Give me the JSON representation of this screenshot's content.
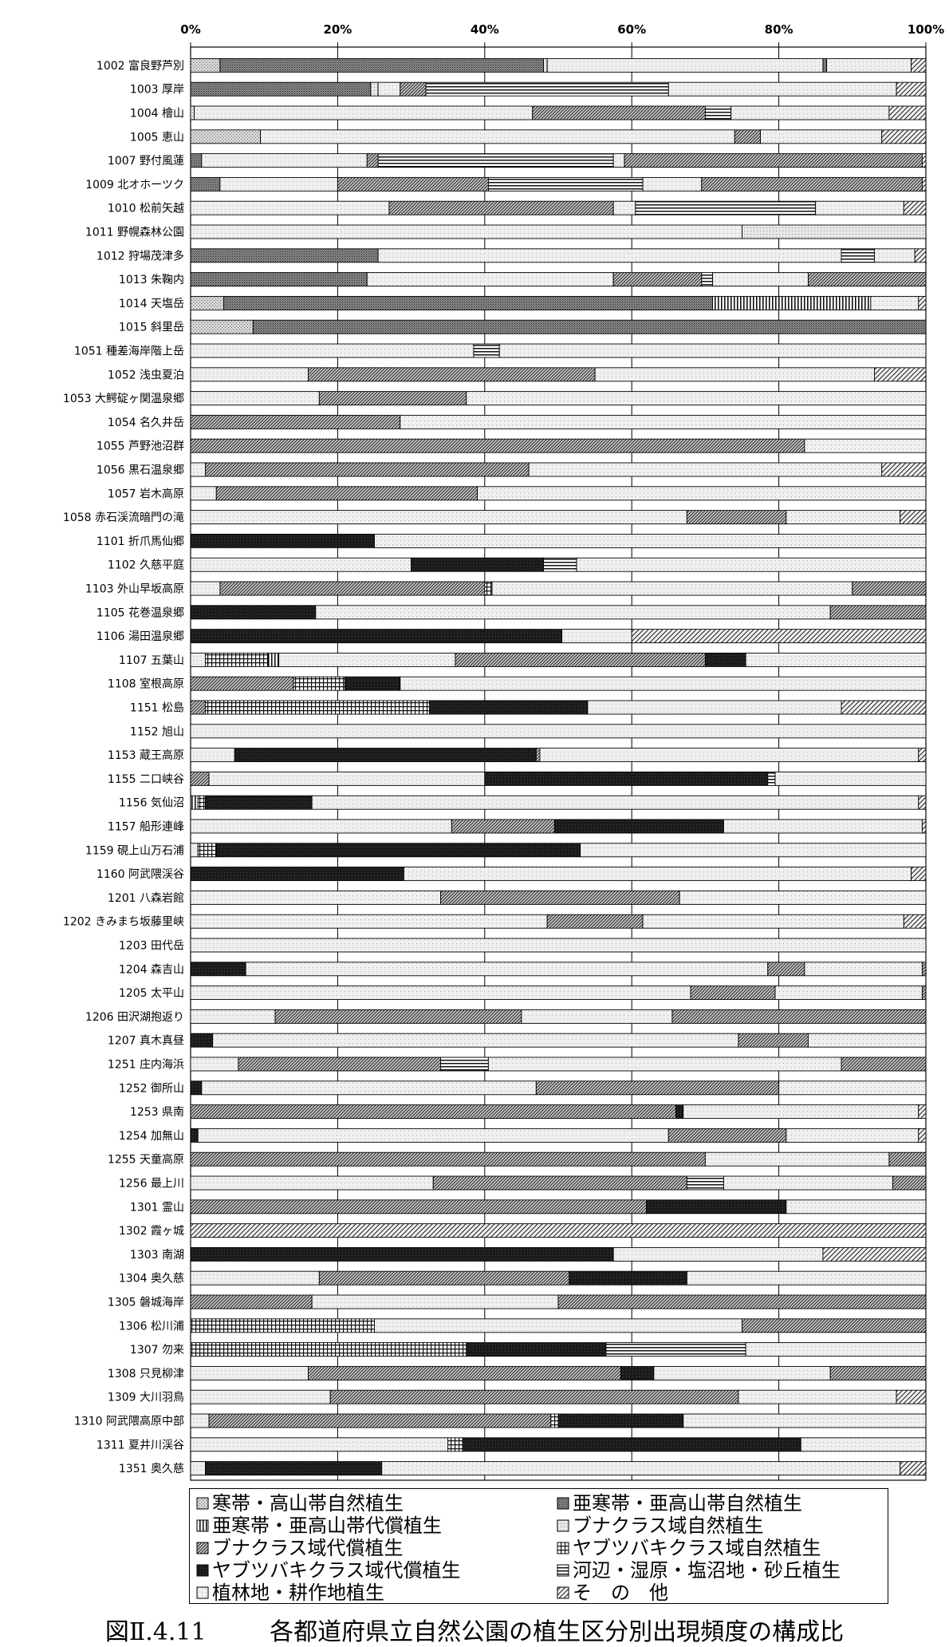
{
  "chart_data": {
    "type": "bar",
    "orientation": "horizontal",
    "stacked": true,
    "title": "各都道府県立自然公園の植生区分別出現頻度の構成比",
    "figure_number": "図Ⅱ.4.11",
    "x_ticks": [
      "0%",
      "20%",
      "40%",
      "60%",
      "80%",
      "100%"
    ],
    "xlim": [
      0,
      100
    ],
    "grid": "vertical at 20% intervals",
    "legend_position": "bottom",
    "series": [
      {
        "name": "寒帯・高山帯自然植生",
        "pattern": "light-dots"
      },
      {
        "name": "亜寒帯・亜高山帯自然植生",
        "pattern": "dense-dots"
      },
      {
        "name": "亜寒帯・亜高山帯代償植生",
        "pattern": "vertical-lines"
      },
      {
        "name": "ブナクラス域自然植生",
        "pattern": "fine-dots"
      },
      {
        "name": "ブナクラス域代償植生",
        "pattern": "diagonal-dense"
      },
      {
        "name": "ヤブツバキクラス域自然植生",
        "pattern": "grid"
      },
      {
        "name": "ヤブツバキクラス域代償植生",
        "pattern": "black"
      },
      {
        "name": "河辺・湿原・塩沼地・砂丘植生",
        "pattern": "horizontal-lines"
      },
      {
        "name": "植林地・耕作地植生",
        "pattern": "very-light"
      },
      {
        "name": "そ　の　他",
        "pattern": "diagonal-sparse"
      }
    ],
    "categories": [
      "1002 富良野芦別",
      "1003 厚岸",
      "1004 檜山",
      "1005 恵山",
      "1007 野付風蓮",
      "1009 北オホーツク",
      "1010 松前矢越",
      "1011 野幌森林公園",
      "1012 狩場茂津多",
      "1013 朱鞠内",
      "1014 天塩岳",
      "1015 斜里岳",
      "1051 種差海岸階上岳",
      "1052 浅虫夏泊",
      "1053 大鰐碇ヶ関温泉郷",
      "1054 名久井岳",
      "1055 芦野池沼群",
      "1056 黒石温泉郷",
      "1057 岩木高原",
      "1058 赤石渓流暗門の滝",
      "1101 折爪馬仙郷",
      "1102 久慈平庭",
      "1103 外山早坂高原",
      "1105 花巻温泉郷",
      "1106 湯田温泉郷",
      "1107 五葉山",
      "1108 室根高原",
      "1151 松島",
      "1152 旭山",
      "1153 蔵王高原",
      "1155 二口峡谷",
      "1156 気仙沼",
      "1157 船形連峰",
      "1159 硯上山万石浦",
      "1160 阿武隈渓谷",
      "1201 八森岩館",
      "1202 きみまち坂藤里峡",
      "1203 田代岳",
      "1204 森吉山",
      "1205 太平山",
      "1206 田沢湖抱返り",
      "1207 真木真昼",
      "1251 庄内海浜",
      "1252 御所山",
      "1253 県南",
      "1254 加無山",
      "1255 天童高原",
      "1256 最上川",
      "1301 霊山",
      "1302 霞ヶ城",
      "1303 南湖",
      "1304 奥久慈",
      "1305 磐城海岸",
      "1306 松川浦",
      "1307 勿来",
      "1308 只見柳津",
      "1309 大川羽鳥",
      "1310 阿武隈高原中部",
      "1311 夏井川渓谷",
      "1351 奥久慈"
    ],
    "rows": [
      [
        [
          0,
          4
        ],
        [
          1,
          44
        ],
        [
          3,
          0.5
        ],
        [
          8,
          37.5
        ],
        [
          1,
          0.5
        ],
        [
          8,
          11.5
        ],
        [
          9,
          2
        ]
      ],
      [
        [
          1,
          24.5
        ],
        [
          3,
          1
        ],
        [
          8,
          3
        ],
        [
          4,
          3.5
        ],
        [
          7,
          33
        ],
        [
          8,
          31
        ],
        [
          9,
          4
        ]
      ],
      [
        [
          3,
          0.5
        ],
        [
          8,
          46
        ],
        [
          4,
          23.5
        ],
        [
          7,
          3.5
        ],
        [
          8,
          21.5
        ],
        [
          9,
          5
        ]
      ],
      [
        [
          0,
          9.5
        ],
        [
          8,
          64.5
        ],
        [
          4,
          3.5
        ],
        [
          8,
          16.5
        ],
        [
          9,
          6
        ]
      ],
      [
        [
          1,
          1.5
        ],
        [
          8,
          22.5
        ],
        [
          4,
          1.5
        ],
        [
          7,
          32
        ],
        [
          8,
          1.5
        ],
        [
          4,
          40.5
        ],
        [
          9,
          0.5
        ]
      ],
      [
        [
          1,
          4
        ],
        [
          8,
          16
        ],
        [
          4,
          20.5
        ],
        [
          7,
          21
        ],
        [
          8,
          8
        ],
        [
          4,
          30
        ],
        [
          9,
          0.5
        ]
      ],
      [
        [
          8,
          27
        ],
        [
          4,
          30.5
        ],
        [
          8,
          3
        ],
        [
          7,
          24.5
        ],
        [
          8,
          12
        ],
        [
          9,
          3
        ]
      ],
      [
        [
          8,
          75
        ],
        [
          3,
          25
        ]
      ],
      [
        [
          1,
          25.5
        ],
        [
          8,
          63
        ],
        [
          7,
          4.5
        ],
        [
          8,
          5.5
        ],
        [
          9,
          1.5
        ]
      ],
      [
        [
          1,
          24
        ],
        [
          8,
          33.5
        ],
        [
          4,
          12
        ],
        [
          7,
          1.5
        ],
        [
          8,
          13
        ],
        [
          4,
          16
        ]
      ],
      [
        [
          0,
          4.5
        ],
        [
          1,
          66.5
        ],
        [
          2,
          21.5
        ],
        [
          8,
          6.5
        ],
        [
          9,
          1
        ]
      ],
      [
        [
          0,
          8.5
        ],
        [
          1,
          91.5
        ]
      ],
      [
        [
          8,
          38.5
        ],
        [
          7,
          3.5
        ],
        [
          8,
          58
        ]
      ],
      [
        [
          8,
          16
        ],
        [
          4,
          39
        ],
        [
          8,
          38
        ],
        [
          9,
          7
        ]
      ],
      [
        [
          8,
          17.5
        ],
        [
          4,
          20
        ],
        [
          8,
          62.5
        ]
      ],
      [
        [
          4,
          28.5
        ],
        [
          8,
          71.5
        ]
      ],
      [
        [
          4,
          83.5
        ],
        [
          8,
          16.5
        ]
      ],
      [
        [
          8,
          2
        ],
        [
          4,
          44
        ],
        [
          8,
          48
        ],
        [
          9,
          6
        ]
      ],
      [
        [
          8,
          3.5
        ],
        [
          4,
          35.5
        ],
        [
          8,
          61
        ]
      ],
      [
        [
          8,
          67.5
        ],
        [
          4,
          13.5
        ],
        [
          8,
          15.5
        ],
        [
          9,
          3.5
        ]
      ],
      [
        [
          6,
          25
        ],
        [
          8,
          75
        ]
      ],
      [
        [
          8,
          30
        ],
        [
          6,
          18
        ],
        [
          7,
          4.5
        ],
        [
          8,
          47.5
        ]
      ],
      [
        [
          8,
          4
        ],
        [
          4,
          36
        ],
        [
          5,
          1
        ],
        [
          8,
          49
        ],
        [
          4,
          10
        ]
      ],
      [
        [
          6,
          17
        ],
        [
          8,
          70
        ],
        [
          4,
          13
        ]
      ],
      [
        [
          6,
          50.5
        ],
        [
          8,
          9.5
        ],
        [
          9,
          40
        ]
      ],
      [
        [
          8,
          2
        ],
        [
          5,
          8.5
        ],
        [
          2,
          1.5
        ],
        [
          8,
          24
        ],
        [
          4,
          34
        ],
        [
          6,
          5.5
        ],
        [
          8,
          24.5
        ]
      ],
      [
        [
          4,
          14
        ],
        [
          5,
          7
        ],
        [
          6,
          7.5
        ],
        [
          8,
          71.5
        ]
      ],
      [
        [
          4,
          2
        ],
        [
          5,
          30.5
        ],
        [
          6,
          21.5
        ],
        [
          8,
          34.5
        ],
        [
          9,
          11.5
        ]
      ],
      [
        [
          8,
          100
        ]
      ],
      [
        [
          8,
          6
        ],
        [
          6,
          41
        ],
        [
          4,
          0.5
        ],
        [
          8,
          51.5
        ],
        [
          9,
          1
        ]
      ],
      [
        [
          4,
          2.5
        ],
        [
          8,
          37.5
        ],
        [
          6,
          38.5
        ],
        [
          7,
          1
        ],
        [
          8,
          20.5
        ]
      ],
      [
        [
          2,
          1
        ],
        [
          5,
          1
        ],
        [
          6,
          14.5
        ],
        [
          8,
          82.5
        ],
        [
          9,
          1
        ]
      ],
      [
        [
          8,
          35.5
        ],
        [
          4,
          14
        ],
        [
          6,
          23
        ],
        [
          8,
          27
        ],
        [
          9,
          0.5
        ]
      ],
      [
        [
          8,
          1
        ],
        [
          5,
          2.5
        ],
        [
          6,
          49.5
        ],
        [
          8,
          47
        ]
      ],
      [
        [
          6,
          29
        ],
        [
          8,
          69
        ],
        [
          9,
          2
        ]
      ],
      [
        [
          8,
          34
        ],
        [
          4,
          32.5
        ],
        [
          8,
          33.5
        ]
      ],
      [
        [
          8,
          48.5
        ],
        [
          4,
          13
        ],
        [
          8,
          35.5
        ],
        [
          9,
          3
        ]
      ],
      [
        [
          8,
          100
        ]
      ],
      [
        [
          6,
          7.5
        ],
        [
          8,
          71
        ],
        [
          4,
          5
        ],
        [
          8,
          16
        ],
        [
          4,
          0.5
        ]
      ],
      [
        [
          8,
          68
        ],
        [
          4,
          11.5
        ],
        [
          8,
          20
        ],
        [
          4,
          0.5
        ]
      ],
      [
        [
          8,
          11.5
        ],
        [
          4,
          33.5
        ],
        [
          8,
          20.5
        ],
        [
          4,
          34.5
        ]
      ],
      [
        [
          6,
          3
        ],
        [
          8,
          71.5
        ],
        [
          4,
          9.5
        ],
        [
          8,
          16
        ]
      ],
      [
        [
          8,
          6.5
        ],
        [
          4,
          27.5
        ],
        [
          7,
          6.5
        ],
        [
          8,
          48
        ],
        [
          4,
          11.5
        ]
      ],
      [
        [
          6,
          1.5
        ],
        [
          8,
          45.5
        ],
        [
          4,
          33
        ],
        [
          8,
          20
        ]
      ],
      [
        [
          4,
          66
        ],
        [
          6,
          1
        ],
        [
          8,
          32
        ],
        [
          9,
          1
        ]
      ],
      [
        [
          6,
          1
        ],
        [
          8,
          64
        ],
        [
          4,
          16
        ],
        [
          8,
          18
        ],
        [
          9,
          1
        ]
      ],
      [
        [
          4,
          70
        ],
        [
          8,
          25
        ],
        [
          4,
          5
        ]
      ],
      [
        [
          8,
          33
        ],
        [
          4,
          34.5
        ],
        [
          7,
          5
        ],
        [
          8,
          23
        ],
        [
          4,
          4.5
        ]
      ],
      [
        [
          4,
          62
        ],
        [
          6,
          19
        ],
        [
          8,
          19
        ]
      ],
      [
        [
          9,
          100
        ]
      ],
      [
        [
          6,
          57.5
        ],
        [
          8,
          28.5
        ],
        [
          9,
          14
        ]
      ],
      [
        [
          8,
          17.5
        ],
        [
          4,
          34
        ],
        [
          6,
          16
        ],
        [
          8,
          32.5
        ]
      ],
      [
        [
          4,
          16.5
        ],
        [
          8,
          33.5
        ],
        [
          4,
          50
        ]
      ],
      [
        [
          5,
          25
        ],
        [
          8,
          50
        ],
        [
          4,
          25
        ]
      ],
      [
        [
          5,
          37.5
        ],
        [
          6,
          19
        ],
        [
          7,
          19
        ],
        [
          8,
          24.5
        ]
      ],
      [
        [
          8,
          16
        ],
        [
          4,
          42.5
        ],
        [
          6,
          4.5
        ],
        [
          8,
          24
        ],
        [
          4,
          13
        ]
      ],
      [
        [
          8,
          19
        ],
        [
          4,
          55.5
        ],
        [
          8,
          21.5
        ],
        [
          9,
          4
        ]
      ],
      [
        [
          8,
          2.5
        ],
        [
          4,
          46.5
        ],
        [
          5,
          1
        ],
        [
          6,
          17
        ],
        [
          8,
          33
        ]
      ],
      [
        [
          8,
          35
        ],
        [
          5,
          2
        ],
        [
          6,
          46
        ],
        [
          8,
          17
        ]
      ],
      [
        [
          8,
          2
        ],
        [
          6,
          24
        ],
        [
          8,
          70.5
        ],
        [
          9,
          3.5
        ]
      ]
    ]
  }
}
